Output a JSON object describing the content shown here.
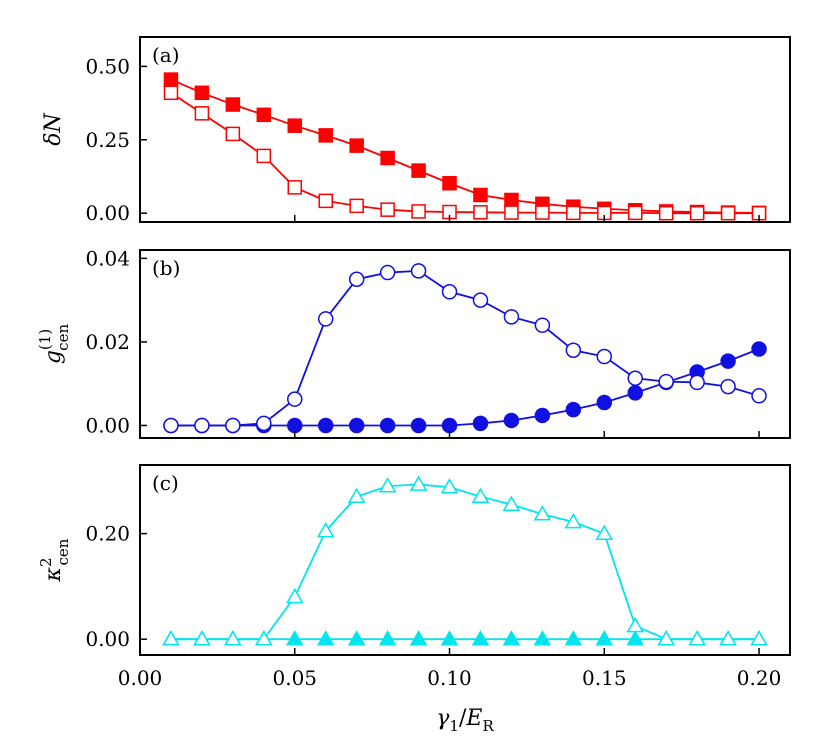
{
  "chart_data": [
    {
      "type": "line",
      "panel_label": "(a)",
      "ylabel": "δN",
      "xlabel": "",
      "xlim": [
        0.0,
        0.21
      ],
      "ylim": [
        -0.03,
        0.6
      ],
      "yticks": [
        "0.00",
        "0.25",
        "0.50"
      ],
      "grid": false,
      "colors": {
        "line": "#ff0000"
      },
      "series": [
        {
          "marker": "square-filled",
          "x": [
            0.01,
            0.02,
            0.03,
            0.04,
            0.05,
            0.06,
            0.07,
            0.08,
            0.09,
            0.1,
            0.11,
            0.12,
            0.13,
            0.14,
            0.15,
            0.16,
            0.17,
            0.18,
            0.19,
            0.2
          ],
          "values": [
            0.455,
            0.41,
            0.37,
            0.335,
            0.298,
            0.265,
            0.23,
            0.188,
            0.145,
            0.102,
            0.062,
            0.045,
            0.032,
            0.022,
            0.015,
            0.01,
            0.006,
            0.004,
            0.002,
            0.001
          ]
        },
        {
          "marker": "square-open",
          "x": [
            0.01,
            0.02,
            0.03,
            0.04,
            0.05,
            0.06,
            0.07,
            0.08,
            0.09,
            0.1,
            0.11,
            0.12,
            0.13,
            0.14,
            0.15,
            0.16,
            0.17,
            0.18,
            0.19,
            0.2
          ],
          "values": [
            0.41,
            0.34,
            0.27,
            0.195,
            0.088,
            0.042,
            0.025,
            0.012,
            0.006,
            0.004,
            0.003,
            0.002,
            0.002,
            0.001,
            0.001,
            0.001,
            0.0,
            0.0,
            0.0,
            0.0
          ]
        }
      ]
    },
    {
      "type": "line",
      "panel_label": "(b)",
      "ylabel": "g(1)cen",
      "xlabel": "",
      "xlim": [
        0.0,
        0.21
      ],
      "ylim": [
        -0.003,
        0.042
      ],
      "yticks": [
        "0.00",
        "0.02",
        "0.04"
      ],
      "grid": false,
      "colors": {
        "line": "#1010e0"
      },
      "series": [
        {
          "marker": "circle-filled",
          "x": [
            0.01,
            0.02,
            0.03,
            0.04,
            0.05,
            0.06,
            0.07,
            0.08,
            0.09,
            0.1,
            0.11,
            0.12,
            0.13,
            0.14,
            0.15,
            0.16,
            0.17,
            0.18,
            0.19,
            0.2
          ],
          "values": [
            0.0,
            0.0,
            0.0,
            0.0,
            0.0,
            0.0,
            0.0,
            0.0,
            0.0,
            0.0,
            0.0005,
            0.0012,
            0.0024,
            0.0038,
            0.0055,
            0.0078,
            0.0103,
            0.0128,
            0.0154,
            0.0183
          ]
        },
        {
          "marker": "circle-open",
          "x": [
            0.01,
            0.02,
            0.03,
            0.04,
            0.05,
            0.06,
            0.07,
            0.08,
            0.09,
            0.1,
            0.11,
            0.12,
            0.13,
            0.14,
            0.15,
            0.16,
            0.17,
            0.18,
            0.19,
            0.2
          ],
          "values": [
            0.0,
            0.0,
            0.0,
            0.0005,
            0.0063,
            0.0255,
            0.035,
            0.0366,
            0.037,
            0.032,
            0.03,
            0.026,
            0.024,
            0.018,
            0.0165,
            0.0113,
            0.0105,
            0.0103,
            0.0093,
            0.0071
          ]
        }
      ]
    },
    {
      "type": "line",
      "panel_label": "(c)",
      "ylabel": "κ2cen",
      "xlabel": "γ1/ER",
      "xlim": [
        0.0,
        0.21
      ],
      "ylim": [
        -0.03,
        0.33
      ],
      "yticks": [
        "0.00",
        "0.20"
      ],
      "xticks": [
        "0.00",
        "0.05",
        "0.10",
        "0.15",
        "0.20"
      ],
      "grid": false,
      "colors": {
        "line": "#00e5ee"
      },
      "series": [
        {
          "marker": "triangle-filled",
          "x": [
            0.01,
            0.02,
            0.03,
            0.04,
            0.05,
            0.06,
            0.07,
            0.08,
            0.09,
            0.1,
            0.11,
            0.12,
            0.13,
            0.14,
            0.15,
            0.16,
            0.17,
            0.18,
            0.19,
            0.2
          ],
          "values": [
            0.0,
            0.0,
            0.0,
            0.0,
            0.0,
            0.0,
            0.0,
            0.0,
            0.0,
            0.0,
            0.0,
            0.0,
            0.0,
            0.0,
            0.0,
            0.0,
            0.0,
            0.0,
            0.0,
            0.0
          ]
        },
        {
          "marker": "triangle-open",
          "x": [
            0.01,
            0.02,
            0.03,
            0.04,
            0.05,
            0.06,
            0.07,
            0.08,
            0.09,
            0.1,
            0.11,
            0.12,
            0.13,
            0.14,
            0.15,
            0.16,
            0.17,
            0.18,
            0.19,
            0.2
          ],
          "values": [
            0.0,
            0.0,
            0.0,
            0.0,
            0.08,
            0.205,
            0.27,
            0.29,
            0.293,
            0.288,
            0.27,
            0.255,
            0.237,
            0.222,
            0.2,
            0.025,
            0.0,
            0.0,
            0.0,
            0.0
          ]
        }
      ]
    }
  ]
}
